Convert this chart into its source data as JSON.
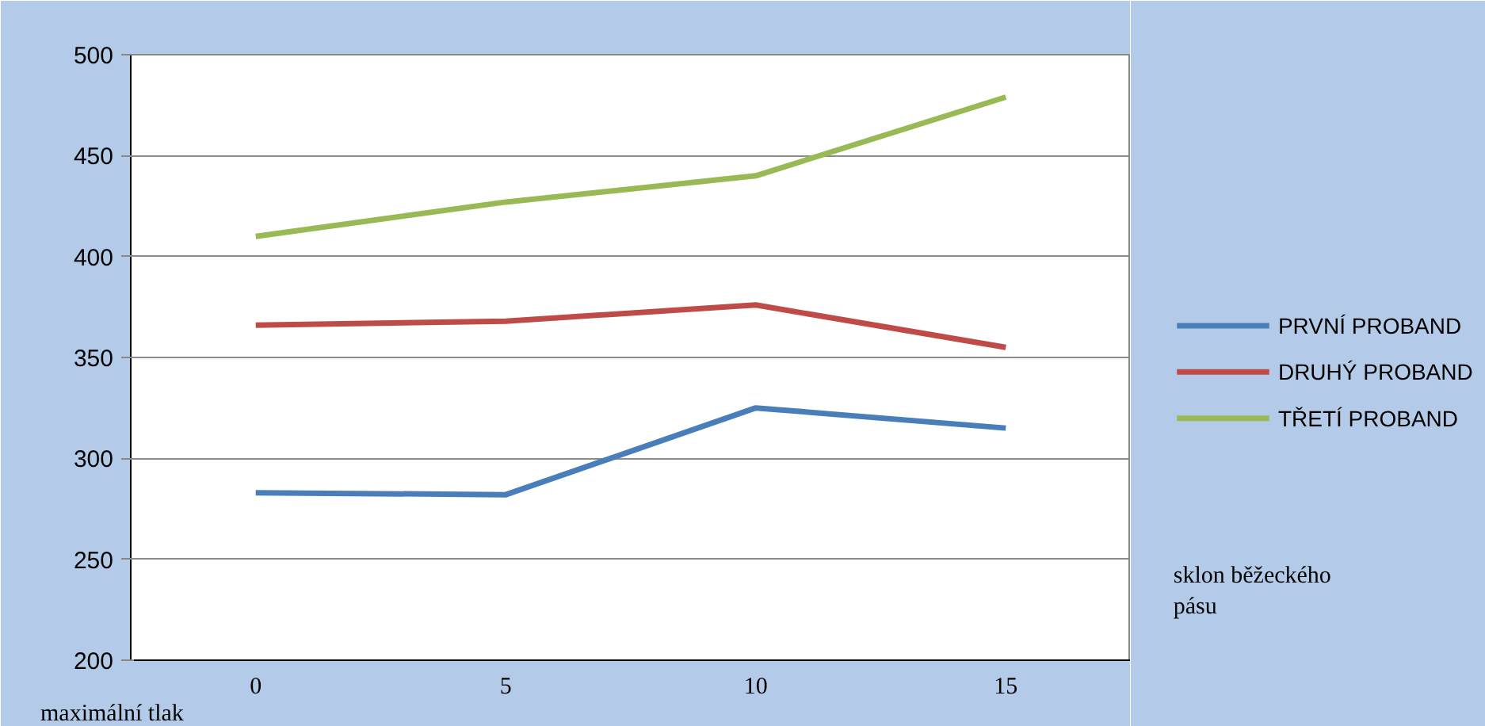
{
  "chart_data": {
    "type": "line",
    "xlabel": "sklon běžeckého pásu",
    "ylabel": "maximální tlak",
    "categories": [
      "0",
      "5",
      "10",
      "15"
    ],
    "series": [
      {
        "name": "PRVNÍ PROBAND",
        "color": "#4a7ebb",
        "values": [
          283,
          282,
          325,
          315
        ]
      },
      {
        "name": "DRUHÝ PROBAND",
        "color": "#be4b48",
        "values": [
          366,
          368,
          376,
          355
        ]
      },
      {
        "name": "TŘETÍ PROBAND",
        "color": "#98b954",
        "values": [
          410,
          427,
          440,
          479
        ]
      }
    ],
    "ylim": [
      200,
      500
    ],
    "yticks": [
      200,
      250,
      300,
      350,
      400,
      450,
      500
    ],
    "grid": "y",
    "legend": "right",
    "marker": "none",
    "line_style": "solid"
  }
}
